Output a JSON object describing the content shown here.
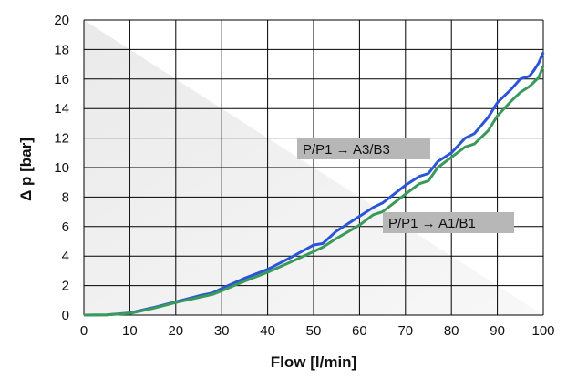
{
  "chart_data": {
    "type": "line",
    "xlabel": "Flow [l/min]",
    "ylabel": "Δ p [bar]",
    "xlim": [
      0,
      100
    ],
    "ylim": [
      0,
      20
    ],
    "x_ticks": [
      0,
      10,
      20,
      30,
      40,
      50,
      60,
      70,
      80,
      90,
      100
    ],
    "y_ticks": [
      0,
      2,
      4,
      6,
      8,
      10,
      12,
      14,
      16,
      18,
      20
    ],
    "grid": true,
    "legend": "none",
    "series": [
      {
        "name": "P/P1 → A3/B3",
        "color": "#2b55d9",
        "x": [
          0,
          5,
          10,
          15,
          20,
          25,
          28,
          30,
          35,
          40,
          45,
          50,
          52,
          55,
          60,
          63,
          65,
          70,
          73,
          75,
          77,
          80,
          83,
          85,
          88,
          90,
          93,
          95,
          97,
          98,
          99,
          100
        ],
        "y": [
          0,
          0.02,
          0.15,
          0.5,
          0.9,
          1.3,
          1.5,
          1.8,
          2.5,
          3.1,
          3.9,
          4.75,
          4.85,
          5.7,
          6.7,
          7.3,
          7.6,
          8.8,
          9.4,
          9.6,
          10.4,
          11.0,
          12.0,
          12.3,
          13.4,
          14.4,
          15.3,
          16.0,
          16.2,
          16.6,
          17.1,
          17.8
        ]
      },
      {
        "name": "P/P1 → A1/B1",
        "color": "#3a9a5a",
        "x": [
          0,
          5,
          10,
          15,
          20,
          25,
          28,
          30,
          35,
          40,
          45,
          50,
          52,
          55,
          60,
          63,
          65,
          70,
          73,
          75,
          77,
          80,
          83,
          85,
          88,
          90,
          93,
          95,
          97,
          98,
          99,
          100
        ],
        "y": [
          0,
          0.02,
          0.12,
          0.45,
          0.85,
          1.2,
          1.4,
          1.65,
          2.3,
          2.9,
          3.6,
          4.3,
          4.6,
          5.2,
          6.1,
          6.8,
          7.0,
          8.2,
          8.9,
          9.1,
          10.0,
          10.7,
          11.4,
          11.6,
          12.5,
          13.5,
          14.5,
          15.1,
          15.5,
          15.8,
          16.1,
          16.9
        ]
      }
    ],
    "annotations": [
      {
        "text": "P/P1 → A3/B3",
        "series": 0
      },
      {
        "text": "P/P1 → A1/B1",
        "series": 1
      }
    ]
  }
}
